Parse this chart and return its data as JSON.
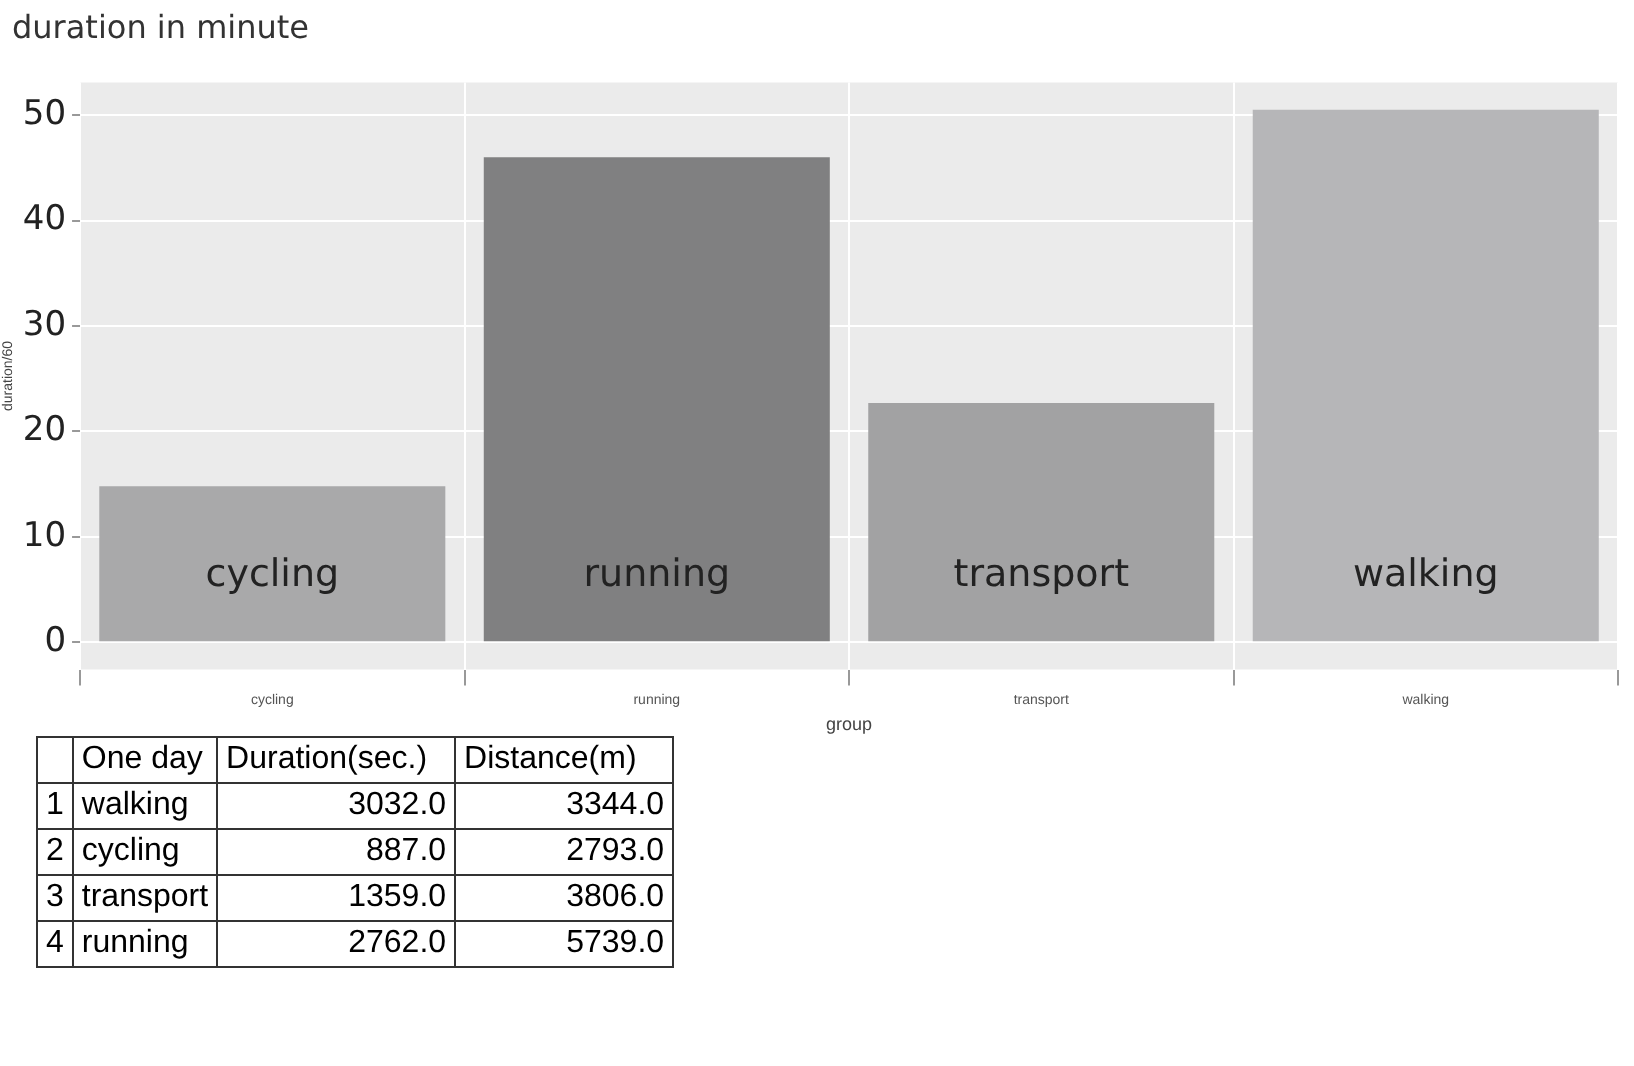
{
  "chart_data": {
    "type": "bar",
    "title": "duration in minute",
    "xlabel": "group",
    "ylabel": "duration/60",
    "categories": [
      "cycling",
      "running",
      "transport",
      "walking"
    ],
    "values": [
      14.8,
      46.0,
      22.7,
      50.5
    ],
    "colors": [
      "#a9a9aa",
      "#808081",
      "#a2a2a3",
      "#b6b6b8"
    ],
    "ylim": [
      -2.6,
      53.1
    ],
    "yticks": [
      0,
      10,
      20,
      30,
      40,
      50
    ],
    "grid": true,
    "legend": false,
    "annotations": [
      "\tOne day\tDuration(sec.)\tDistance(m)",
      "1\twalking\t3032.0\t3344.0",
      "2\tcycling\t887.0\t2793.0",
      "3\ttransport\t1359.0\t3806.0",
      "4\trunning\t2762.0\t5739.0"
    ]
  }
}
